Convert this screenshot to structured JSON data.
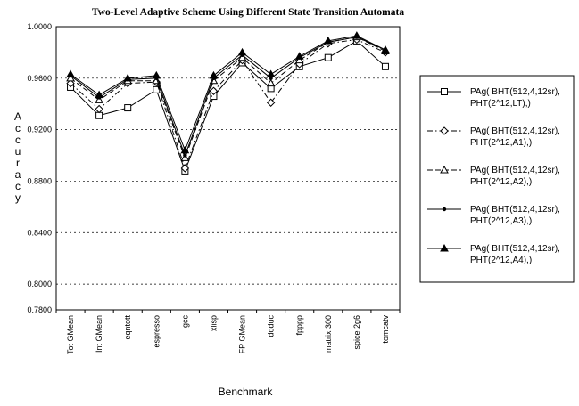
{
  "chart_data": {
    "type": "line",
    "title": "Two-Level Adaptive Scheme Using Different State Transition Automata",
    "xlabel": "Benchmark",
    "ylabel": "Accuracy",
    "ylim": [
      0.78,
      1.0
    ],
    "yticks": [
      "0.7800",
      "0.8000",
      "0.8400",
      "0.8800",
      "0.9200",
      "0.9600",
      "1.0000"
    ],
    "ytick_values": [
      0.78,
      0.8,
      0.84,
      0.88,
      0.92,
      0.96,
      1.0
    ],
    "grid": "horizontal dashed",
    "legend_position": "right",
    "categories": [
      "Tot GMean",
      "Int GMean",
      "eqntott",
      "espresso",
      "gcc",
      "xlisp",
      "FP GMean",
      "doduc",
      "fpppp",
      "matrix 300",
      "spice 2g6",
      "tomcatv"
    ],
    "series": [
      {
        "name": "PAg( BHT(512,4,12sr), PHT(2^12,LT),)",
        "legend_line1": "PAg( BHT(512,4,12sr),",
        "legend_line2": "PHT(2^12,LT),)",
        "marker": "square",
        "dash": "solid",
        "values": [
          0.953,
          0.931,
          0.937,
          0.951,
          0.888,
          0.946,
          0.972,
          0.952,
          0.969,
          0.976,
          0.989,
          0.969
        ]
      },
      {
        "name": "PAg( BHT(512,4,12sr), PHT(2^12,A1),)",
        "legend_line1": "PAg( BHT(512,4,12sr),",
        "legend_line2": "PHT(2^12,A1),)",
        "marker": "diamond",
        "dash": "dashdot",
        "values": [
          0.956,
          0.936,
          0.956,
          0.957,
          0.89,
          0.95,
          0.974,
          0.941,
          0.971,
          0.987,
          0.99,
          0.98
        ]
      },
      {
        "name": "PAg( BHT(512,4,12sr), PHT(2^12,A2),)",
        "legend_line1": "PAg( BHT(512,4,12sr),",
        "legend_line2": "PHT(2^12,A2),)",
        "marker": "triangle-open",
        "dash": "dashed",
        "values": [
          0.96,
          0.943,
          0.958,
          0.958,
          0.898,
          0.958,
          0.976,
          0.956,
          0.974,
          0.988,
          0.992,
          0.981
        ]
      },
      {
        "name": "PAg( BHT(512,4,12sr), PHT(2^12,A3),)",
        "legend_line1": "PAg( BHT(512,4,12sr),",
        "legend_line2": "PHT(2^12,A3),)",
        "marker": "dot",
        "dash": "solid",
        "values": [
          0.962,
          0.945,
          0.959,
          0.96,
          0.9,
          0.96,
          0.978,
          0.96,
          0.976,
          0.988,
          0.992,
          0.982
        ]
      },
      {
        "name": "PAg( BHT(512,4,12sr), PHT(2^12,A4),)",
        "legend_line1": "PAg( BHT(512,4,12sr),",
        "legend_line2": "PHT(2^12,A4),)",
        "marker": "triangle-filled",
        "dash": "solid",
        "values": [
          0.963,
          0.947,
          0.96,
          0.962,
          0.904,
          0.962,
          0.98,
          0.963,
          0.977,
          0.989,
          0.993,
          0.982
        ]
      }
    ]
  }
}
